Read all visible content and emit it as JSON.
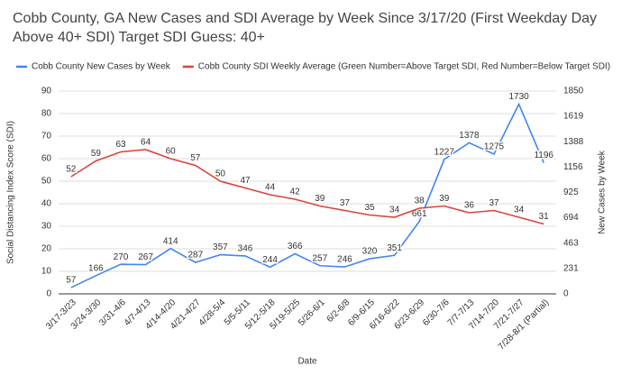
{
  "chart_data": {
    "type": "line",
    "title": "Cobb County, GA New Cases and SDI Average by Week Since 3/17/20 (First Weekday Day Above 40+ SDI) Target SDI Guess: 40+",
    "x_label": "Date",
    "y_label": "Social Distancing Index Score (SDI)",
    "y2_label": "New Cases by Week",
    "categories": [
      "3/17-3/23",
      "3/24-3/30",
      "3/31-4/6",
      "4/7-4/13",
      "4/14-4/20",
      "4/21-4/27",
      "4/28-5/4",
      "5/5-5/11",
      "5/12-5/18",
      "5/19-5/25",
      "5/26-6/1",
      "6/2-6/8",
      "6/9-6/15",
      "6/16-6/22",
      "6/23-6/29",
      "6/30-7/6",
      "7/7-7/13",
      "7/14-7/20",
      "7/21-7/27",
      "7/28-8/1 (Partial)"
    ],
    "series": [
      {
        "name": "Cobb County New Cases by Week",
        "color": "#4285f4",
        "axis": "y2",
        "values": [
          57,
          166,
          270,
          267,
          414,
          287,
          357,
          346,
          244,
          366,
          257,
          246,
          320,
          351,
          661,
          1227,
          1378,
          1275,
          1730,
          1196
        ]
      },
      {
        "name": "Cobb County SDI Weekly Average (Green Number=Above Target SDI, Red Number=Below Target SDI)",
        "color": "#db4437",
        "values": [
          52,
          59,
          63,
          64,
          60,
          57,
          50,
          47,
          44,
          42,
          39,
          37,
          35,
          34,
          38,
          39,
          36,
          37,
          34,
          31
        ],
        "target": 40,
        "above_label_color": "#3c9a3c",
        "below_label_color": "#cc0000"
      }
    ],
    "ylim": [
      0,
      90
    ],
    "yticks": [
      0,
      10,
      20,
      30,
      40,
      50,
      60,
      70,
      80,
      90
    ],
    "y_tick_color": "#cc0000",
    "y2lim": [
      0,
      1850
    ],
    "y2ticks": [
      0,
      231,
      463,
      694,
      925,
      1156,
      1388,
      1619,
      1850
    ],
    "y2_tick_color": "#4285f4",
    "grid": true
  }
}
